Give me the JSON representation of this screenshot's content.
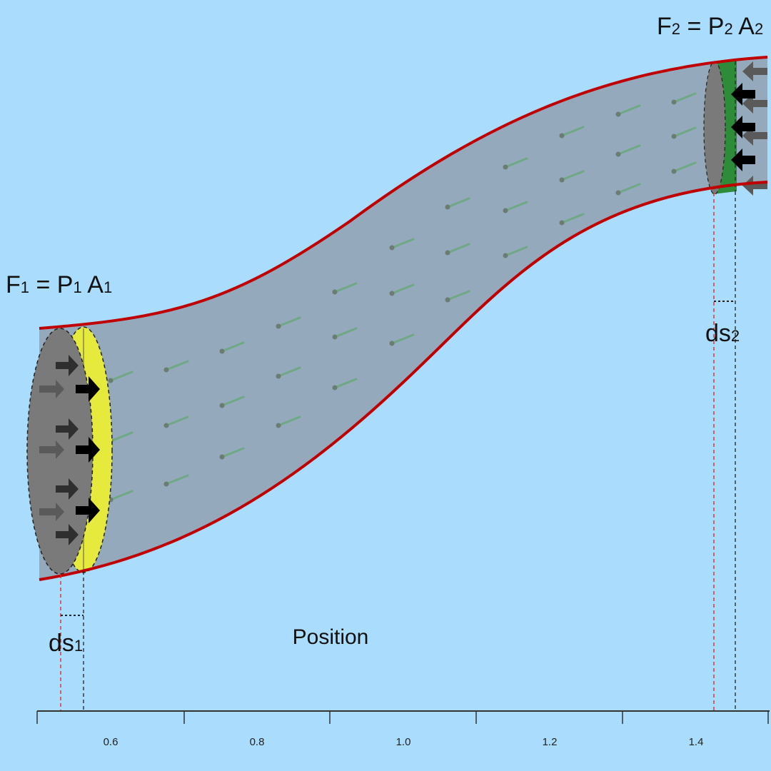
{
  "diagram": {
    "left_force": {
      "F": "F",
      "F_sub": "1",
      "eq": " = ",
      "P": "P",
      "P_sub": "1",
      "A": " A",
      "A_sub": "1"
    },
    "right_force": {
      "F": "F",
      "F_sub": "2",
      "eq": " = ",
      "P": "P",
      "P_sub": "2",
      "A": " A",
      "A_sub": "2"
    },
    "ds1": {
      "text": "ds",
      "sub": "1"
    },
    "ds2": {
      "text": "ds",
      "sub": "2"
    },
    "x_axis_label": "Position",
    "x_ticks": [
      "0.6",
      "0.8",
      "1.0",
      "1.2",
      "1.4"
    ],
    "colors": {
      "background": "#aadcfd",
      "tube_fill": "#94a9bc",
      "tube_wall": "#c00000",
      "inlet_disc": "#7a7a7a",
      "inlet_volume": "#e6ea3c",
      "outlet_volume": "#2e8b3a",
      "streamline": "#6fa884"
    },
    "icons": [
      "arrow-right-icon",
      "arrow-left-icon"
    ]
  }
}
